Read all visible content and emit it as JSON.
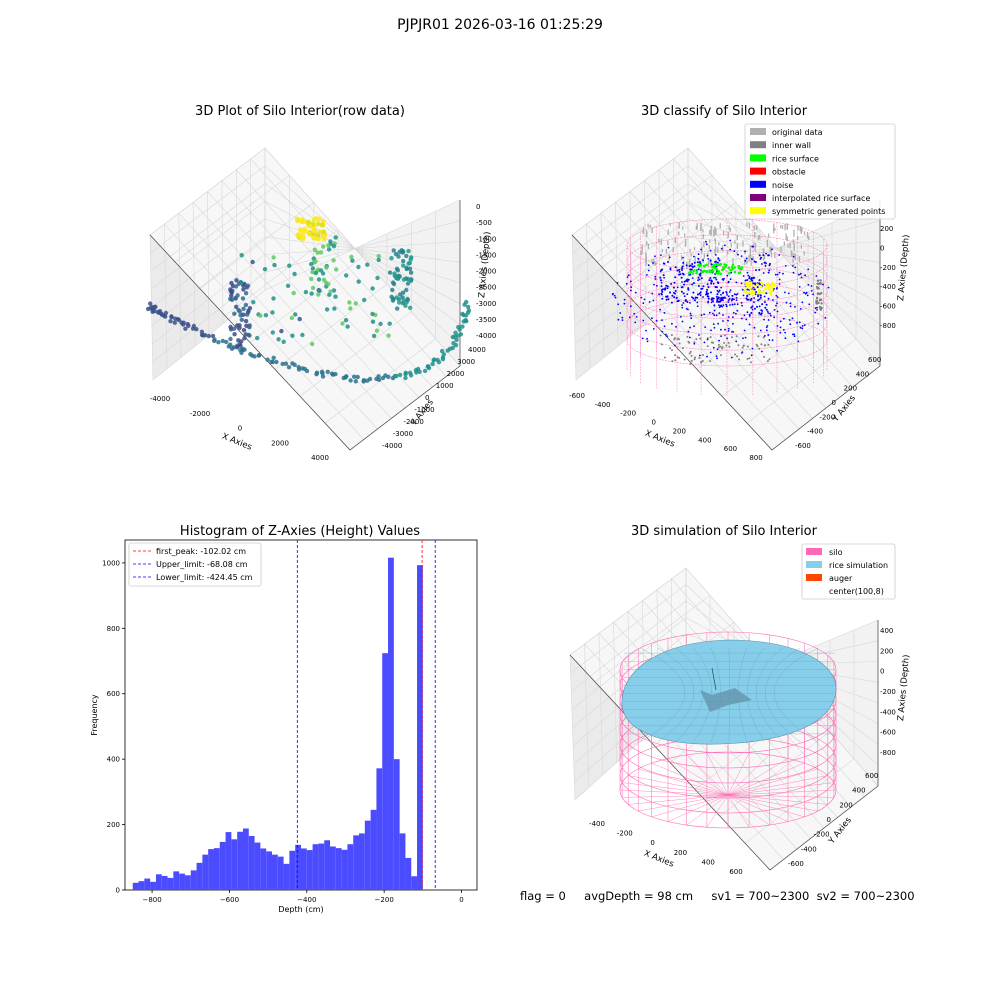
{
  "page_title": "PJPJR01 2026-03-16 01:25:29",
  "status": {
    "flag": "flag = 0",
    "avg_depth": "avgDepth = 98 cm",
    "sv1": "sv1 = 700~2300",
    "sv2": "sv2 = 700~2300"
  },
  "colors": {
    "original_data": "#b0b0b0",
    "inner_wall": "#808080",
    "rice_surface": "#00ff00",
    "obstacle": "#ff0000",
    "noise": "#0000ff",
    "interpolated_rice_surface": "#800080",
    "symmetric_generated_points": "#ffff00",
    "silo": "#ff69b4",
    "rice_simulation": "#87ceeb",
    "auger": "#ff4500",
    "histogram_bars": "#4b4bff"
  },
  "chart_data": [
    {
      "type": "scatter",
      "projection": "3d",
      "title": "3D Plot of Silo Interior(row data)",
      "xlabel": "X Axies",
      "ylabel": "Y Axies",
      "zlabel": "Z Axies (Depth)",
      "x_ticks": [
        "-4000",
        "-2000",
        "0",
        "2000",
        "4000"
      ],
      "y_ticks": [
        "-4000",
        "-3000",
        "-2000",
        "-1000",
        "0",
        "1000",
        "2000",
        "3000",
        "4000"
      ],
      "z_ticks": [
        "0",
        "-500",
        "-1000",
        "-1500",
        "-2000",
        "-2500",
        "-3000",
        "-3500",
        "-4000"
      ],
      "xlim": [
        -4500,
        4500
      ],
      "ylim": [
        -4500,
        4500
      ],
      "zlim": [
        -4200,
        200
      ],
      "colormap": "viridis",
      "grid": true
    },
    {
      "type": "scatter",
      "projection": "3d",
      "title": "3D classify of Silo Interior",
      "xlabel": "X Axies",
      "ylabel": "Y Axies",
      "zlabel": "Z Axies (Depth)",
      "x_ticks": [
        "-600",
        "-400",
        "-200",
        "0",
        "200",
        "400",
        "600",
        "800"
      ],
      "y_ticks": [
        "-600",
        "-400",
        "-200",
        "0",
        "200",
        "400",
        "600"
      ],
      "z_ticks": [
        "200",
        "0",
        "-200",
        "-400",
        "-600",
        "-800"
      ],
      "z_ticks_partial": [
        "00"
      ],
      "xlim": [
        -650,
        850
      ],
      "ylim": [
        -650,
        650
      ],
      "zlim": [
        -900,
        300
      ],
      "legend": [
        "original data",
        "inner wall",
        "rice surface",
        "obstacle",
        "noise",
        "interpolated rice surface",
        "symmetric generated points"
      ],
      "legend_location": "top-right",
      "grid": true
    },
    {
      "type": "bar",
      "title": "Histogram of Z-Axies (Height) Values",
      "xlabel": "Depth (cm)",
      "ylabel": "Frequency",
      "xlim": [
        -870,
        40
      ],
      "ylim": [
        0,
        1070
      ],
      "x_ticks": [
        -800,
        -600,
        -400,
        -200,
        0
      ],
      "y_ticks": [
        0,
        200,
        400,
        600,
        800,
        1000
      ],
      "bin_width": 15,
      "bin_starts": [
        -850,
        -835,
        -820,
        -805,
        -790,
        -775,
        -760,
        -745,
        -730,
        -715,
        -700,
        -685,
        -670,
        -655,
        -640,
        -625,
        -610,
        -595,
        -580,
        -565,
        -550,
        -535,
        -520,
        -505,
        -490,
        -475,
        -460,
        -445,
        -430,
        -415,
        -400,
        -385,
        -370,
        -355,
        -340,
        -325,
        -310,
        -295,
        -280,
        -265,
        -250,
        -235,
        -220,
        -205,
        -190,
        -175,
        -160,
        -145,
        -130,
        -115,
        -100,
        -85,
        -70,
        -55,
        -40,
        -25,
        -10
      ],
      "values": [
        22,
        27,
        35,
        25,
        48,
        43,
        37,
        57,
        50,
        45,
        60,
        83,
        108,
        125,
        128,
        147,
        177,
        155,
        178,
        188,
        165,
        145,
        127,
        118,
        108,
        102,
        80,
        120,
        138,
        127,
        122,
        140,
        142,
        152,
        133,
        128,
        123,
        140,
        167,
        173,
        212,
        245,
        372,
        724,
        1016,
        400,
        173,
        98,
        42,
        993,
        0,
        0,
        0,
        0,
        0,
        0,
        0
      ],
      "reference_lines": [
        {
          "label": "first_peak: -102.02 cm",
          "x": -102.02,
          "color": "#ff0000",
          "style": "dashed"
        },
        {
          "label": "Upper_limit: -68.08 cm",
          "x": -68.08,
          "color": "#0000ff",
          "style": "dashed"
        },
        {
          "label": "Lower_limit: -424.45 cm",
          "x": -424.45,
          "color": "#0000ff",
          "style": "dashed"
        }
      ],
      "legend_location": "top-left"
    },
    {
      "type": "surface",
      "projection": "3d",
      "title": "3D simulation of Silo Interior",
      "xlabel": "X Axies",
      "ylabel": "Y Axies",
      "zlabel": "Z Axies (Depth)",
      "x_ticks": [
        "-400",
        "-200",
        "0",
        "200",
        "400",
        "600"
      ],
      "y_ticks": [
        "-600",
        "-400",
        "-200",
        "0",
        "200",
        "400",
        "600"
      ],
      "z_ticks": [
        "400",
        "200",
        "0",
        "-200",
        "-400",
        "-600",
        "-800"
      ],
      "xlim": [
        -500,
        700
      ],
      "ylim": [
        -650,
        650
      ],
      "zlim": [
        -900,
        450
      ],
      "legend": [
        "silo",
        "rice simulation",
        "auger",
        "center(100,8)"
      ],
      "legend_location": "top-right",
      "grid": true
    }
  ]
}
